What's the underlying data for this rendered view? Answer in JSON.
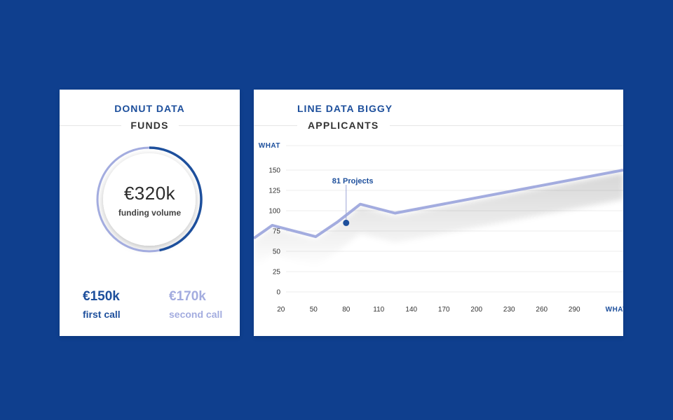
{
  "donut_card": {
    "title": "DONUT DATA",
    "subtitle": "FUNDS",
    "center_value": "€320k",
    "center_label": "funding volume",
    "first": {
      "value": "€150k",
      "label": "first call"
    },
    "second": {
      "value": "€170k",
      "label": "second call"
    }
  },
  "line_card": {
    "title": "LINE DATA BIGGY",
    "subtitle": "APPLICANTS"
  },
  "colors": {
    "background": "#0f3f8e",
    "primary": "#1d4f9c",
    "secondary": "#a3acdf"
  },
  "chart_data": [
    {
      "type": "pie",
      "variant": "donut",
      "slices": [
        {
          "name": "first call",
          "value": 150,
          "color": "#1d4f9c"
        },
        {
          "name": "second call",
          "value": 170,
          "color": "#a3acdf"
        }
      ]
    },
    {
      "type": "line",
      "xlabel": "WHAT",
      "ylabel": "WHAT",
      "x_ticks": [
        20,
        50,
        80,
        110,
        140,
        170,
        200,
        230,
        260,
        290
      ],
      "y_ticks": [
        0,
        25,
        50,
        75,
        100,
        125,
        150
      ],
      "xlim": [
        -5,
        335
      ],
      "ylim": [
        0,
        150
      ],
      "grid": true,
      "series": [
        {
          "color": "#a3acdf",
          "x": [
            -5,
            12,
            52,
            72,
            93,
            125,
            335
          ],
          "y": [
            66,
            82,
            68,
            86,
            108,
            97,
            150
          ]
        }
      ],
      "annotation": {
        "x": 80,
        "y": 85,
        "value": "81",
        "label": "Projects"
      }
    }
  ]
}
